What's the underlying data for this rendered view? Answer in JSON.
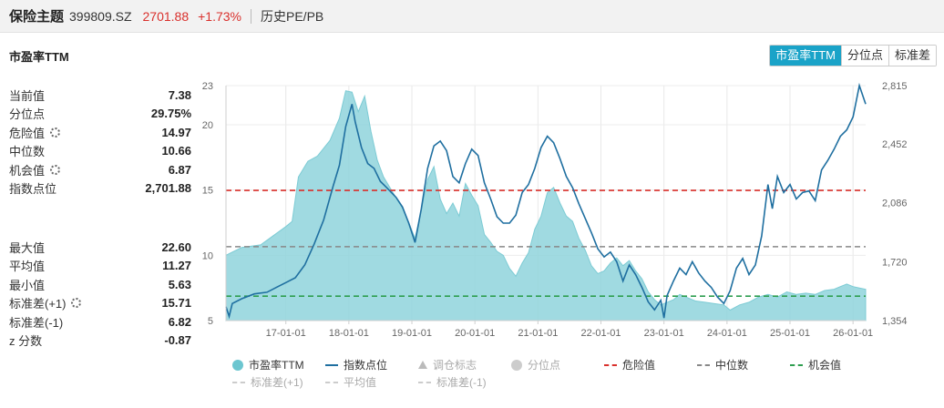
{
  "header": {
    "title": "保险主题",
    "code": "399809.SZ",
    "price": "2701.88",
    "change": "+1.73%",
    "link": "历史PE/PB"
  },
  "panel": {
    "title": "市盈率TTM",
    "tabs": [
      {
        "label": "市盈率TTM",
        "active": true
      },
      {
        "label": "分位点",
        "active": false
      },
      {
        "label": "标准差",
        "active": false
      }
    ]
  },
  "stats_top": [
    {
      "label": "当前值",
      "value": "7.38",
      "gear": false
    },
    {
      "label": "分位点",
      "value": "29.75%",
      "gear": false
    },
    {
      "label": "危险值",
      "value": "14.97",
      "gear": true
    },
    {
      "label": "中位数",
      "value": "10.66",
      "gear": false
    },
    {
      "label": "机会值",
      "value": "6.87",
      "gear": true
    },
    {
      "label": "指数点位",
      "value": "2,701.88",
      "gear": false
    }
  ],
  "stats_bottom": [
    {
      "label": "最大值",
      "value": "22.60",
      "gear": false
    },
    {
      "label": "平均值",
      "value": "11.27",
      "gear": false
    },
    {
      "label": "最小值",
      "value": "5.63",
      "gear": false
    },
    {
      "label": "标准差(+1)",
      "value": "15.71",
      "gear": true
    },
    {
      "label": "标准差(-1)",
      "value": "6.82",
      "gear": false
    },
    {
      "label": "z 分数",
      "value": "-0.87",
      "gear": false
    }
  ],
  "legend": {
    "row1": [
      {
        "label": "市盈率TTM",
        "symbol": "circle",
        "color": "#6cc6d0",
        "dim": false
      },
      {
        "label": "指数点位",
        "symbol": "line",
        "color": "#1f6fa0",
        "dim": false
      },
      {
        "label": "调仓标志",
        "symbol": "triangle",
        "color": "#bbbbbb",
        "dim": true
      },
      {
        "label": "分位点",
        "symbol": "circle",
        "color": "#cccccc",
        "dim": true
      },
      {
        "label": "危险值",
        "symbol": "dash",
        "color": "#d9302c",
        "dim": false
      },
      {
        "label": "中位数",
        "symbol": "dash",
        "color": "#888888",
        "dim": false
      },
      {
        "label": "机会值",
        "symbol": "dash",
        "color": "#2e9e4f",
        "dim": false
      }
    ],
    "row2": [
      {
        "label": "标准差(+1)",
        "symbol": "dash",
        "color": "#cccccc",
        "dim": true
      },
      {
        "label": "平均值",
        "symbol": "dash",
        "color": "#cccccc",
        "dim": true
      },
      {
        "label": "标准差(-1)",
        "symbol": "dash",
        "color": "#cccccc",
        "dim": true
      }
    ]
  },
  "chart_data": {
    "type": "area",
    "x_ticks": [
      "17-01-01",
      "18-01-01",
      "19-01-01",
      "20-01-01",
      "21-01-01",
      "22-01-01",
      "23-01-01",
      "24-01-01",
      "25-01-01",
      "26-01-01"
    ],
    "left_axis": {
      "ticks": [
        5,
        10,
        15,
        20,
        23
      ],
      "range": [
        5,
        23
      ]
    },
    "right_axis": {
      "ticks": [
        "1,354",
        "1,720",
        "2,086",
        "2,452",
        "2,815"
      ],
      "range": [
        1354,
        2815
      ]
    },
    "x_range": [
      2016.05,
      2026.2
    ],
    "colors": {
      "pe": "#8fd4dc",
      "index": "#1f6fa0",
      "danger": "#d9302c",
      "median": "#888888",
      "chance": "#2e9e4f"
    },
    "lines": {
      "danger": 14.97,
      "median": 10.66,
      "chance": 6.87
    },
    "series": [
      {
        "name": "市盈率TTM",
        "axis": "left",
        "points": [
          [
            2016.05,
            10.0
          ],
          [
            2016.3,
            10.6
          ],
          [
            2016.6,
            10.8
          ],
          [
            2016.8,
            11.5
          ],
          [
            2017.0,
            12.2
          ],
          [
            2017.1,
            12.6
          ],
          [
            2017.2,
            16.0
          ],
          [
            2017.35,
            17.2
          ],
          [
            2017.5,
            17.6
          ],
          [
            2017.7,
            18.8
          ],
          [
            2017.85,
            20.5
          ],
          [
            2017.95,
            22.6
          ],
          [
            2018.05,
            22.5
          ],
          [
            2018.15,
            21.0
          ],
          [
            2018.25,
            22.2
          ],
          [
            2018.35,
            19.5
          ],
          [
            2018.45,
            17.3
          ],
          [
            2018.55,
            16.0
          ],
          [
            2018.65,
            15.2
          ],
          [
            2018.75,
            14.4
          ],
          [
            2018.85,
            13.6
          ],
          [
            2018.95,
            12.5
          ],
          [
            2019.05,
            11.3
          ],
          [
            2019.15,
            13.5
          ],
          [
            2019.25,
            15.8
          ],
          [
            2019.35,
            16.8
          ],
          [
            2019.45,
            14.3
          ],
          [
            2019.55,
            13.2
          ],
          [
            2019.65,
            14.0
          ],
          [
            2019.75,
            13.0
          ],
          [
            2019.85,
            15.5
          ],
          [
            2019.95,
            14.6
          ],
          [
            2020.05,
            13.8
          ],
          [
            2020.15,
            11.6
          ],
          [
            2020.25,
            11.0
          ],
          [
            2020.35,
            10.3
          ],
          [
            2020.45,
            10.0
          ],
          [
            2020.55,
            9.0
          ],
          [
            2020.65,
            8.4
          ],
          [
            2020.75,
            9.4
          ],
          [
            2020.85,
            10.2
          ],
          [
            2020.95,
            12.0
          ],
          [
            2021.05,
            13.0
          ],
          [
            2021.15,
            14.8
          ],
          [
            2021.25,
            15.2
          ],
          [
            2021.35,
            14.0
          ],
          [
            2021.45,
            13.0
          ],
          [
            2021.55,
            12.6
          ],
          [
            2021.65,
            11.3
          ],
          [
            2021.75,
            10.4
          ],
          [
            2021.85,
            9.2
          ],
          [
            2021.95,
            8.6
          ],
          [
            2022.05,
            8.8
          ],
          [
            2022.15,
            9.4
          ],
          [
            2022.25,
            9.8
          ],
          [
            2022.35,
            9.2
          ],
          [
            2022.45,
            9.6
          ],
          [
            2022.55,
            8.8
          ],
          [
            2022.65,
            8.2
          ],
          [
            2022.75,
            7.2
          ],
          [
            2022.85,
            6.6
          ],
          [
            2022.95,
            6.2
          ],
          [
            2023.05,
            6.4
          ],
          [
            2023.15,
            6.6
          ],
          [
            2023.25,
            7.0
          ],
          [
            2023.35,
            6.8
          ],
          [
            2023.5,
            6.5
          ],
          [
            2023.65,
            6.4
          ],
          [
            2023.8,
            6.3
          ],
          [
            2023.95,
            6.2
          ],
          [
            2024.05,
            5.8
          ],
          [
            2024.2,
            6.2
          ],
          [
            2024.35,
            6.4
          ],
          [
            2024.5,
            6.8
          ],
          [
            2024.65,
            7.0
          ],
          [
            2024.8,
            6.8
          ],
          [
            2024.95,
            7.2
          ],
          [
            2025.1,
            7.0
          ],
          [
            2025.25,
            7.1
          ],
          [
            2025.4,
            7.0
          ],
          [
            2025.55,
            7.3
          ],
          [
            2025.7,
            7.4
          ],
          [
            2025.8,
            7.6
          ],
          [
            2025.9,
            7.8
          ],
          [
            2026.0,
            7.6
          ],
          [
            2026.1,
            7.5
          ],
          [
            2026.2,
            7.4
          ]
        ]
      },
      {
        "name": "指数点位",
        "axis": "right",
        "points": [
          [
            2016.05,
            1440
          ],
          [
            2016.1,
            1380
          ],
          [
            2016.15,
            1460
          ],
          [
            2016.3,
            1490
          ],
          [
            2016.5,
            1520
          ],
          [
            2016.7,
            1530
          ],
          [
            2016.85,
            1560
          ],
          [
            2017.0,
            1590
          ],
          [
            2017.15,
            1620
          ],
          [
            2017.3,
            1700
          ],
          [
            2017.45,
            1830
          ],
          [
            2017.6,
            1980
          ],
          [
            2017.75,
            2190
          ],
          [
            2017.85,
            2320
          ],
          [
            2017.95,
            2560
          ],
          [
            2018.05,
            2700
          ],
          [
            2018.1,
            2590
          ],
          [
            2018.2,
            2430
          ],
          [
            2018.3,
            2330
          ],
          [
            2018.4,
            2300
          ],
          [
            2018.5,
            2220
          ],
          [
            2018.6,
            2180
          ],
          [
            2018.75,
            2120
          ],
          [
            2018.85,
            2060
          ],
          [
            2018.95,
            1960
          ],
          [
            2019.05,
            1840
          ],
          [
            2019.15,
            2050
          ],
          [
            2019.25,
            2300
          ],
          [
            2019.35,
            2440
          ],
          [
            2019.45,
            2470
          ],
          [
            2019.55,
            2410
          ],
          [
            2019.65,
            2250
          ],
          [
            2019.75,
            2210
          ],
          [
            2019.85,
            2330
          ],
          [
            2019.95,
            2420
          ],
          [
            2020.05,
            2380
          ],
          [
            2020.15,
            2210
          ],
          [
            2020.25,
            2110
          ],
          [
            2020.35,
            2000
          ],
          [
            2020.45,
            1960
          ],
          [
            2020.55,
            1960
          ],
          [
            2020.65,
            2010
          ],
          [
            2020.75,
            2150
          ],
          [
            2020.85,
            2200
          ],
          [
            2020.95,
            2300
          ],
          [
            2021.05,
            2430
          ],
          [
            2021.15,
            2500
          ],
          [
            2021.25,
            2460
          ],
          [
            2021.35,
            2360
          ],
          [
            2021.45,
            2250
          ],
          [
            2021.55,
            2180
          ],
          [
            2021.65,
            2080
          ],
          [
            2021.75,
            1990
          ],
          [
            2021.85,
            1900
          ],
          [
            2021.95,
            1800
          ],
          [
            2022.05,
            1750
          ],
          [
            2022.15,
            1780
          ],
          [
            2022.25,
            1720
          ],
          [
            2022.35,
            1600
          ],
          [
            2022.45,
            1700
          ],
          [
            2022.55,
            1640
          ],
          [
            2022.65,
            1560
          ],
          [
            2022.75,
            1470
          ],
          [
            2022.85,
            1420
          ],
          [
            2022.95,
            1480
          ],
          [
            2023.0,
            1370
          ],
          [
            2023.05,
            1510
          ],
          [
            2023.15,
            1600
          ],
          [
            2023.25,
            1680
          ],
          [
            2023.35,
            1640
          ],
          [
            2023.45,
            1720
          ],
          [
            2023.55,
            1650
          ],
          [
            2023.65,
            1600
          ],
          [
            2023.75,
            1560
          ],
          [
            2023.85,
            1500
          ],
          [
            2023.95,
            1460
          ],
          [
            2024.05,
            1540
          ],
          [
            2024.15,
            1680
          ],
          [
            2024.25,
            1740
          ],
          [
            2024.35,
            1640
          ],
          [
            2024.45,
            1700
          ],
          [
            2024.55,
            1880
          ],
          [
            2024.65,
            2200
          ],
          [
            2024.72,
            2050
          ],
          [
            2024.8,
            2250
          ],
          [
            2024.9,
            2150
          ],
          [
            2025.0,
            2200
          ],
          [
            2025.1,
            2110
          ],
          [
            2025.2,
            2150
          ],
          [
            2025.3,
            2160
          ],
          [
            2025.4,
            2100
          ],
          [
            2025.5,
            2290
          ],
          [
            2025.6,
            2350
          ],
          [
            2025.7,
            2420
          ],
          [
            2025.8,
            2500
          ],
          [
            2025.9,
            2540
          ],
          [
            2026.0,
            2620
          ],
          [
            2026.1,
            2815
          ],
          [
            2026.2,
            2700
          ]
        ]
      }
    ]
  }
}
